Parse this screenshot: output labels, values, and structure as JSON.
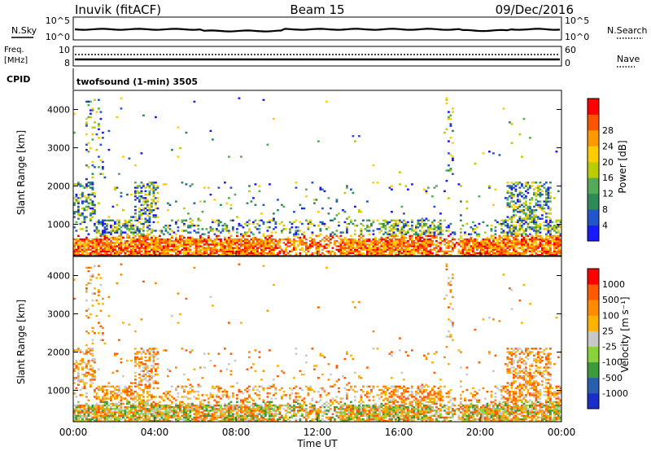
{
  "header": {
    "station": "Inuvik (fitACF)",
    "beam": "Beam 15",
    "date": "09/Dec/2016"
  },
  "meta_panels": {
    "nsky_label": "N.Sky",
    "nsearch_label": "N.Search",
    "sky_ticks": [
      "10^5",
      "10^0"
    ],
    "search_ticks": [
      "10^5",
      "10^0"
    ],
    "freq_label": "Freq.",
    "freq_unit": "[MHz]",
    "freq_ticks": [
      "10",
      "8"
    ],
    "nave_label": "Nave",
    "nave_ticks": [
      "60",
      "0"
    ],
    "cpid_label": "CPID",
    "cpid_value": "twofsound (1-min) 3505"
  },
  "colors": {
    "power": [
      "#1a1aff",
      "#2255cc",
      "#2e8b57",
      "#55aa55",
      "#bbcc00",
      "#ffcc00",
      "#ff9900",
      "#ff5500",
      "#ff0000"
    ],
    "velocity": [
      "#ff0000",
      "#ff5a00",
      "#ff8c00",
      "#ffb300",
      "#c8c8c8",
      "#8ad23c",
      "#3c9a3c",
      "#2a5fb0",
      "#1a2fc8"
    ]
  },
  "chart_data": [
    {
      "type": "heatmap",
      "name": "power",
      "title": "",
      "xlabel": "",
      "ylabel": "Slant Range [km]",
      "ylim": [
        180,
        4500
      ],
      "yticks": [
        "1000",
        "2000",
        "3000",
        "4000"
      ],
      "xlim": [
        "00:00",
        "24:00"
      ],
      "colorbar_label": "Power [dB]",
      "colorbar_ticks": [
        "4",
        "8",
        "12",
        "16",
        "20",
        "24",
        "28"
      ],
      "colorbar_range": [
        0,
        32
      ]
    },
    {
      "type": "heatmap",
      "name": "velocity",
      "title": "",
      "xlabel": "Time UT",
      "ylabel": "Slant Range [km]",
      "ylim": [
        180,
        4500
      ],
      "yticks": [
        "1000",
        "2000",
        "3000",
        "4000"
      ],
      "xticks": [
        "00:00",
        "04:00",
        "08:00",
        "12:00",
        "16:00",
        "20:00",
        "00:00"
      ],
      "colorbar_label": "Velocity [m s⁻¹]",
      "colorbar_ticks": [
        "1000",
        "500",
        "100",
        "25",
        "-25",
        "-100",
        "-500",
        "-1000"
      ]
    }
  ]
}
